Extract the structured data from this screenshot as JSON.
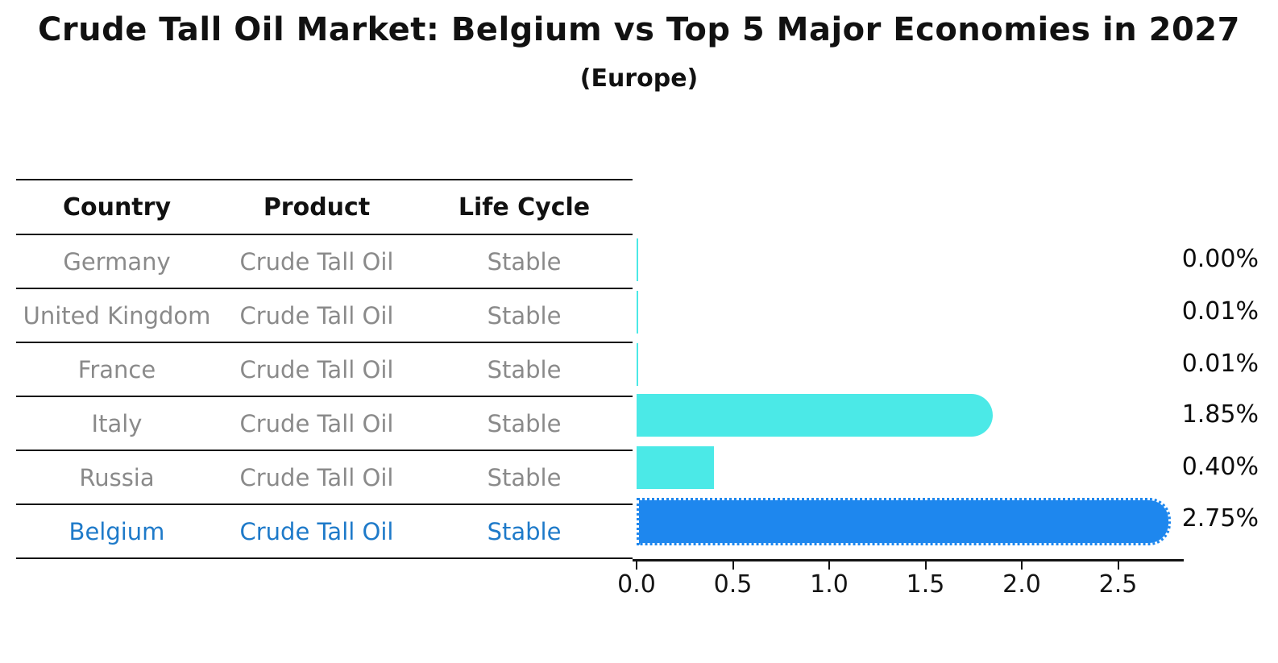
{
  "header": {
    "title": "Crude Tall Oil Market: Belgium vs Top 5 Major Economies in 2027",
    "subtitle": "(Europe)"
  },
  "table": {
    "headers": [
      "Country",
      "Product",
      "Life Cycle"
    ],
    "rows": [
      {
        "country": "Germany",
        "product": "Crude Tall Oil",
        "life_cycle": "Stable",
        "highlight": false
      },
      {
        "country": "United Kingdom",
        "product": "Crude Tall Oil",
        "life_cycle": "Stable",
        "highlight": false
      },
      {
        "country": "France",
        "product": "Crude Tall Oil",
        "life_cycle": "Stable",
        "highlight": false
      },
      {
        "country": "Italy",
        "product": "Crude Tall Oil",
        "life_cycle": "Stable",
        "highlight": false
      },
      {
        "country": "Russia",
        "product": "Crude Tall Oil",
        "life_cycle": "Stable",
        "highlight": false
      },
      {
        "country": "Belgium",
        "product": "Crude Tall Oil",
        "life_cycle": "Stable",
        "highlight": true
      }
    ]
  },
  "chart_data": {
    "type": "bar",
    "orientation": "horizontal",
    "title": "Crude Tall Oil Market: Belgium vs Top 5 Major Economies in 2027 (Europe)",
    "categories": [
      "Germany",
      "United Kingdom",
      "France",
      "Italy",
      "Russia",
      "Belgium"
    ],
    "values": [
      0.0,
      0.01,
      0.01,
      1.85,
      0.4,
      2.75
    ],
    "value_labels": [
      "0.00%",
      "0.01%",
      "0.01%",
      "1.85%",
      "0.40%",
      "2.75%"
    ],
    "highlight_index": 5,
    "xticks": [
      0.0,
      0.5,
      1.0,
      1.5,
      2.0,
      2.5
    ],
    "xtick_labels": [
      "0.0",
      "0.5",
      "1.0",
      "1.5",
      "2.0",
      "2.5"
    ],
    "xlim": [
      0,
      2.84
    ],
    "grid": false,
    "legend": false
  },
  "colors": {
    "bar_default": "#4be9e7",
    "bar_highlight": "#1e87ee",
    "highlight_text": "#1e7ac9",
    "row_text": "#8a8a8a",
    "axis": "#141414"
  }
}
